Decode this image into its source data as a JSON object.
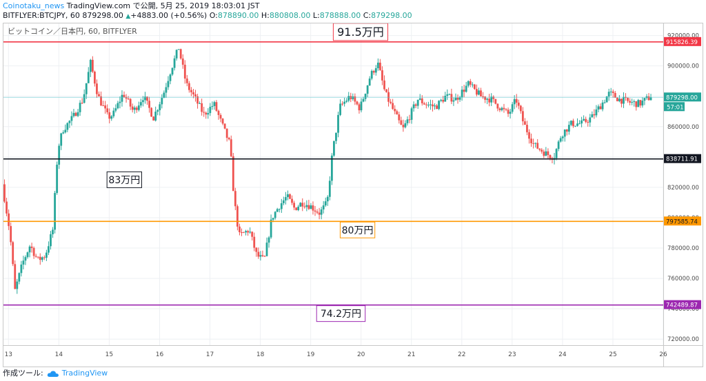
{
  "header": {
    "author": "Coinotaku_news",
    "published": "TradingView.com で公開, 5月 25, 2019 18:03:01 JST",
    "symbol_line": "BITFLYER:BTCJPY, 60",
    "last": "879298.00",
    "change": "+4883.00 (+0.56%)",
    "o_label": "O:",
    "o": "878890.00",
    "h_label": "H:",
    "h": "880808.00",
    "l_label": "L:",
    "l": "878888.00",
    "c_label": "C:",
    "c": "879298.00"
  },
  "footer": {
    "label": "作成ツール:",
    "brand": "TradingView"
  },
  "colors": {
    "up": "#26a69a",
    "down": "#ef5350",
    "grid": "#eef0f3",
    "axis_text": "#4a4a4a"
  },
  "chart_data": {
    "type": "candlestick",
    "title": "ビットコイン／日本円, 60, BITFLYER",
    "x_ticks": [
      "13",
      "14",
      "15",
      "16",
      "17",
      "18",
      "19",
      "20",
      "21",
      "22",
      "23",
      "24",
      "25",
      "26"
    ],
    "y_ticks": [
      "720000.00",
      "740000.00",
      "760000.00",
      "780000.00",
      "800000.00",
      "820000.00",
      "840000.00",
      "860000.00",
      "880000.00",
      "900000.00",
      "920000.00"
    ],
    "ylim": [
      716000,
      928000
    ],
    "xlim": [
      12.9,
      26.0
    ],
    "grid": true,
    "last_price": {
      "label": "879298.00",
      "value": 879298,
      "countdown": "57:01"
    },
    "levels": [
      {
        "value": 915826.39,
        "axis_label": "915826.39",
        "color": "#f23645",
        "annotation": "91.5万円",
        "ann_x": 19.99
      },
      {
        "value": 838711.91,
        "axis_label": "838711.91",
        "color": "#131722",
        "annotation": "83万円",
        "ann_x": 15.3
      },
      {
        "value": 797585.74,
        "axis_label": "797585.74",
        "color": "#ff9800",
        "annotation": "80万円",
        "ann_x": 19.93
      },
      {
        "value": 742489.87,
        "axis_label": "742489.87",
        "color": "#9c27b0",
        "annotation": "74.2万円",
        "ann_x": 19.6
      }
    ],
    "series": [
      {
        "name": "BTCJPY",
        "anchors": [
          [
            12.9,
            822000
          ],
          [
            13.05,
            790000
          ],
          [
            13.15,
            752000
          ],
          [
            13.3,
            770000
          ],
          [
            13.45,
            782000
          ],
          [
            13.6,
            772000
          ],
          [
            13.75,
            775000
          ],
          [
            13.9,
            792000
          ],
          [
            14.0,
            845000
          ],
          [
            14.1,
            858000
          ],
          [
            14.3,
            866000
          ],
          [
            14.5,
            878000
          ],
          [
            14.65,
            902000
          ],
          [
            14.8,
            880000
          ],
          [
            15.0,
            866000
          ],
          [
            15.1,
            868000
          ],
          [
            15.3,
            882000
          ],
          [
            15.5,
            870000
          ],
          [
            15.7,
            880000
          ],
          [
            15.9,
            866000
          ],
          [
            16.1,
            882000
          ],
          [
            16.25,
            898000
          ],
          [
            16.4,
            912000
          ],
          [
            16.55,
            888000
          ],
          [
            16.7,
            880000
          ],
          [
            16.9,
            868000
          ],
          [
            17.1,
            875000
          ],
          [
            17.3,
            858000
          ],
          [
            17.42,
            848000
          ],
          [
            17.5,
            812000
          ],
          [
            17.6,
            788000
          ],
          [
            17.8,
            792000
          ],
          [
            17.95,
            775000
          ],
          [
            18.1,
            772000
          ],
          [
            18.25,
            800000
          ],
          [
            18.4,
            808000
          ],
          [
            18.55,
            814000
          ],
          [
            18.7,
            806000
          ],
          [
            18.85,
            810000
          ],
          [
            19.0,
            808000
          ],
          [
            19.2,
            803000
          ],
          [
            19.35,
            810000
          ],
          [
            19.45,
            842000
          ],
          [
            19.6,
            873000
          ],
          [
            19.8,
            880000
          ],
          [
            20.0,
            872000
          ],
          [
            20.2,
            893000
          ],
          [
            20.35,
            902000
          ],
          [
            20.5,
            882000
          ],
          [
            20.7,
            868000
          ],
          [
            20.85,
            858000
          ],
          [
            21.0,
            868000
          ],
          [
            21.15,
            878000
          ],
          [
            21.3,
            875000
          ],
          [
            21.5,
            873000
          ],
          [
            21.7,
            880000
          ],
          [
            21.9,
            878000
          ],
          [
            22.15,
            888000
          ],
          [
            22.4,
            880000
          ],
          [
            22.6,
            878000
          ],
          [
            22.8,
            872000
          ],
          [
            22.95,
            868000
          ],
          [
            23.1,
            878000
          ],
          [
            23.25,
            862000
          ],
          [
            23.45,
            848000
          ],
          [
            23.7,
            842000
          ],
          [
            23.85,
            840000
          ],
          [
            24.0,
            855000
          ],
          [
            24.2,
            862000
          ],
          [
            24.4,
            862000
          ],
          [
            24.6,
            866000
          ],
          [
            24.8,
            875000
          ],
          [
            24.95,
            882000
          ],
          [
            25.15,
            878000
          ],
          [
            25.35,
            876000
          ],
          [
            25.55,
            875000
          ],
          [
            25.75,
            879298
          ]
        ]
      }
    ]
  }
}
